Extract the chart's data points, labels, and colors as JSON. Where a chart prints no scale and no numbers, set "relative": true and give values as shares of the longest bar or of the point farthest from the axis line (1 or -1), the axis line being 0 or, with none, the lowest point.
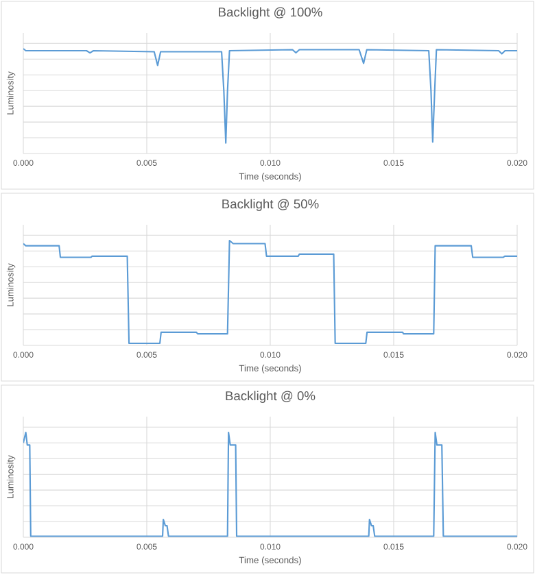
{
  "chart_data": [
    {
      "type": "line",
      "title": "Backlight @ 100%",
      "xlabel": "Time (seconds)",
      "ylabel": "Luminosity",
      "relative": true,
      "grid": true,
      "tick_labels": "x",
      "color": "#5b9bd5",
      "xlim": [
        0,
        0.02
      ],
      "xticks": [
        {
          "value": 0,
          "label": "0.000"
        },
        {
          "value": 0.005,
          "label": "0.005"
        },
        {
          "value": 0.01,
          "label": "0.010"
        },
        {
          "value": 0.015,
          "label": "0.015"
        },
        {
          "value": 0.02,
          "label": "0.020"
        }
      ],
      "x": [
        0,
        0.0001,
        0.00256,
        0.0027,
        0.00284,
        0.0053,
        0.00544,
        0.00556,
        0.00803,
        0.00812,
        0.0082,
        0.00827,
        0.00835,
        0.0109,
        0.01104,
        0.01118,
        0.0136,
        0.01378,
        0.01391,
        0.01642,
        0.01651,
        0.01658,
        0.01666,
        0.01673,
        0.01925,
        0.01938,
        0.01951,
        0.02
      ],
      "values": [
        1.0,
        0.98,
        0.98,
        0.96,
        0.98,
        0.97,
        0.84,
        0.97,
        0.97,
        0.6,
        0.1,
        0.6,
        0.98,
        0.99,
        0.96,
        0.99,
        0.99,
        0.86,
        0.99,
        0.98,
        0.6,
        0.11,
        0.6,
        0.99,
        0.98,
        0.95,
        0.98,
        0.98
      ]
    },
    {
      "type": "line",
      "title": "Backlight @ 50%",
      "xlabel": "Time (seconds)",
      "ylabel": "Luminosity",
      "relative": true,
      "grid": true,
      "tick_labels": "x",
      "color": "#5b9bd5",
      "xlim": [
        0,
        0.02
      ],
      "xticks": [
        {
          "value": 0,
          "label": "0.000"
        },
        {
          "value": 0.005,
          "label": "0.005"
        },
        {
          "value": 0.01,
          "label": "0.010"
        },
        {
          "value": 0.015,
          "label": "0.015"
        },
        {
          "value": 0.02,
          "label": "0.020"
        }
      ],
      "x": [
        0,
        0.0001,
        0.00145,
        0.0015,
        0.00274,
        0.00278,
        0.00421,
        0.00428,
        0.00553,
        0.00558,
        0.00701,
        0.00706,
        0.00827,
        0.00835,
        0.0085,
        0.00979,
        0.00985,
        0.01113,
        0.01118,
        0.01257,
        0.01263,
        0.01387,
        0.01392,
        0.01536,
        0.0154,
        0.01662,
        0.01668,
        0.01814,
        0.0182,
        0.01944,
        0.0195,
        0.02
      ],
      "values": [
        0.97,
        0.95,
        0.95,
        0.84,
        0.84,
        0.85,
        0.85,
        0.02,
        0.02,
        0.125,
        0.125,
        0.11,
        0.11,
        1.0,
        0.97,
        0.97,
        0.85,
        0.85,
        0.87,
        0.87,
        0.02,
        0.02,
        0.125,
        0.125,
        0.11,
        0.11,
        0.95,
        0.95,
        0.84,
        0.84,
        0.85,
        0.85
      ]
    },
    {
      "type": "line",
      "title": "Backlight @ 0%",
      "xlabel": "Time (seconds)",
      "ylabel": "Luminosity",
      "relative": true,
      "grid": true,
      "tick_labels": "x",
      "color": "#5b9bd5",
      "xlim": [
        0,
        0.02
      ],
      "xticks": [
        {
          "value": 0,
          "label": "0.000"
        },
        {
          "value": 0.005,
          "label": "0.005"
        },
        {
          "value": 0.01,
          "label": "0.010"
        },
        {
          "value": 0.015,
          "label": "0.015"
        },
        {
          "value": 0.02,
          "label": "0.020"
        }
      ],
      "x": [
        0,
        0.0001,
        0.00016,
        0.00026,
        0.0003,
        0.00564,
        0.00567,
        0.00575,
        0.00582,
        0.00588,
        0.00827,
        0.00831,
        0.00838,
        0.0086,
        0.00864,
        0.01399,
        0.01402,
        0.0141,
        0.01417,
        0.01423,
        0.01662,
        0.01668,
        0.01675,
        0.01695,
        0.01701,
        0.02
      ],
      "values": [
        0.9,
        1.0,
        0.88,
        0.88,
        0.01,
        0.01,
        0.17,
        0.11,
        0.11,
        0.01,
        0.01,
        1.0,
        0.88,
        0.88,
        0.01,
        0.01,
        0.17,
        0.11,
        0.11,
        0.01,
        0.01,
        1.0,
        0.88,
        0.88,
        0.01,
        0.01
      ]
    }
  ]
}
